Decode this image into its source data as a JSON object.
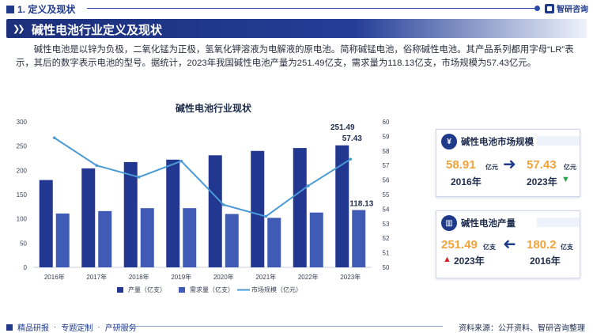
{
  "section": {
    "label": "1. 定义及现状"
  },
  "brand": {
    "name": "智研咨询"
  },
  "banner": {
    "title": "碱性电池行业定义及现状"
  },
  "intro": "碱性电池是以锌为负极，二氧化锰为正极，氢氧化钾溶液为电解液的原电池。简称碱锰电池，俗称碱性电池。其产品系列都用字母“LR”表示，其后的数字表示电池的型号。据统计，2023年我国碱性电池产量为251.49亿支，需求量为118.13亿支，市场规模为57.43亿元。",
  "chart_data": {
    "type": "bar",
    "title": "碱性电池行业现状",
    "categories": [
      "2016年",
      "2017年",
      "2018年",
      "2019年",
      "2020年",
      "2021年",
      "2022年",
      "2023年"
    ],
    "series": [
      {
        "name": "产量（亿支）",
        "type": "bar",
        "axis": "left",
        "color": "#22378f",
        "values": [
          180,
          204,
          217,
          222,
          231,
          240,
          246,
          251.49
        ]
      },
      {
        "name": "需求量（亿支）",
        "type": "bar",
        "axis": "left",
        "color": "#3f5bb5",
        "values": [
          111,
          116,
          122,
          122,
          110,
          102,
          113,
          118.13
        ]
      },
      {
        "name": "市场规模（亿元）",
        "type": "line",
        "axis": "right",
        "color": "#4a9ad6",
        "values": [
          58.9,
          57.0,
          56.2,
          57.3,
          54.3,
          53.5,
          55.6,
          57.43
        ]
      }
    ],
    "y_left": {
      "min": 0,
      "max": 300,
      "ticks": [
        0,
        50,
        100,
        150,
        200,
        250,
        300
      ]
    },
    "y_right": {
      "min": 50,
      "max": 60,
      "ticks": [
        50,
        51,
        52,
        53,
        54,
        55,
        56,
        57,
        58,
        59,
        60
      ]
    },
    "data_labels": [
      "251.49",
      "57.43",
      "118.13"
    ],
    "grid": false,
    "legend_position": "bottom"
  },
  "cards": {
    "market": {
      "title": "碱性电池市场规模",
      "icon": "money-icon",
      "left_value": "58.91",
      "left_unit": "亿元",
      "left_year": "2016年",
      "right_value": "57.43",
      "right_unit": "亿元",
      "right_year": "2023年",
      "trend": "down"
    },
    "output": {
      "title": "碱性电池产量",
      "icon": "bar-chart-icon",
      "left_value": "251.49",
      "left_unit": "亿支",
      "left_year": "2023年",
      "right_value": "180.2",
      "right_unit": "亿支",
      "right_year": "2016年",
      "trend": "up"
    }
  },
  "footer": {
    "items": [
      "精品研报",
      "专题定制",
      "产研服务"
    ],
    "source": "资料来源：公开资料、智研咨询整理"
  }
}
